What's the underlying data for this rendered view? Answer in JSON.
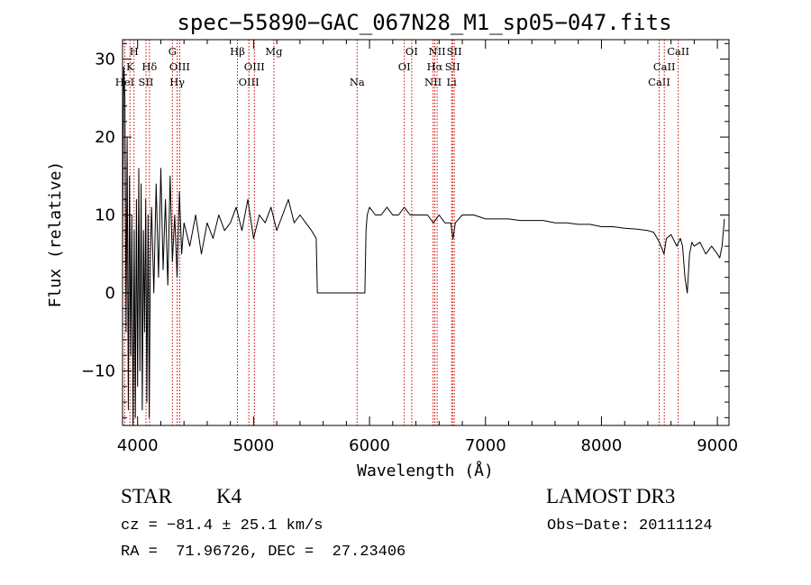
{
  "chart_data": {
    "type": "line",
    "title": "spec−55890−GAC_067N28_M1_sp05−047.fits",
    "xlabel": "Wavelength (Å)",
    "ylabel": "Flux (relative)",
    "xlim": [
      3870,
      9100
    ],
    "ylim": [
      -17,
      32.5
    ],
    "xticks": [
      {
        "v": 4000,
        "label": "4000"
      },
      {
        "v": 5000,
        "label": "5000"
      },
      {
        "v": 6000,
        "label": "6000"
      },
      {
        "v": 7000,
        "label": "7000"
      },
      {
        "v": 8000,
        "label": "8000"
      },
      {
        "v": 9000,
        "label": "9000"
      }
    ],
    "yticks": [
      {
        "v": -10,
        "label": "−10"
      },
      {
        "v": 0,
        "label": "0"
      },
      {
        "v": 10,
        "label": "10"
      },
      {
        "v": 20,
        "label": "20"
      },
      {
        "v": 30,
        "label": "30"
      }
    ],
    "series": [
      {
        "name": "flux",
        "x": [
          3870,
          3880,
          3890,
          3900,
          3910,
          3920,
          3930,
          3940,
          3950,
          3960,
          3970,
          3980,
          3990,
          4000,
          4010,
          4020,
          4030,
          4040,
          4050,
          4060,
          4070,
          4080,
          4090,
          4100,
          4110,
          4120,
          4140,
          4160,
          4180,
          4200,
          4220,
          4240,
          4260,
          4280,
          4300,
          4320,
          4340,
          4360,
          4380,
          4400,
          4450,
          4500,
          4550,
          4600,
          4650,
          4700,
          4750,
          4800,
          4850,
          4900,
          4950,
          5000,
          5050,
          5100,
          5150,
          5200,
          5250,
          5300,
          5350,
          5400,
          5450,
          5500,
          5540,
          5550,
          5560,
          5700,
          5800,
          5900,
          5960,
          5970,
          5980,
          6000,
          6050,
          6100,
          6150,
          6200,
          6250,
          6300,
          6350,
          6400,
          6450,
          6500,
          6550,
          6600,
          6650,
          6700,
          6720,
          6740,
          6800,
          6900,
          7000,
          7100,
          7200,
          7300,
          7400,
          7500,
          7600,
          7700,
          7800,
          7900,
          8000,
          8100,
          8200,
          8300,
          8400,
          8450,
          8500,
          8540,
          8560,
          8600,
          8650,
          8665,
          8680,
          8700,
          8720,
          8740,
          8760,
          8780,
          8800,
          8850,
          8900,
          8950,
          9000,
          9020,
          9040,
          9060
        ],
        "y": [
          5,
          29,
          25,
          -5,
          20,
          -15,
          15,
          -8,
          10,
          -17,
          8,
          -16,
          12,
          -12,
          16,
          -10,
          14,
          -15,
          8,
          -5,
          12,
          -14,
          10,
          -16,
          5,
          11,
          0,
          14,
          2,
          16,
          3,
          12,
          1,
          15,
          4,
          10,
          2,
          13,
          5,
          9,
          6,
          10,
          5,
          9,
          7,
          10,
          8,
          9,
          11,
          8,
          12,
          7,
          10,
          9,
          11,
          8,
          10,
          12,
          9,
          10,
          9,
          8,
          7,
          0,
          0,
          0,
          0,
          0,
          0,
          8,
          10,
          11,
          10,
          10,
          11,
          10,
          10,
          11,
          10,
          10,
          10,
          10,
          9,
          10,
          9,
          9,
          7,
          9,
          10,
          10,
          9.5,
          9.5,
          9.5,
          9.3,
          9.3,
          9.3,
          9.0,
          9.0,
          8.8,
          8.8,
          8.5,
          8.5,
          8.3,
          8.2,
          8.0,
          7.8,
          6.5,
          5,
          7,
          7.5,
          6,
          6.5,
          7,
          6,
          2,
          0,
          5,
          6.5,
          6,
          6.5,
          5,
          6,
          5,
          4.5,
          6,
          9.5
        ]
      }
    ],
    "lines": [
      {
        "wl": 3889,
        "label": "HeI",
        "row": 2
      },
      {
        "wl": 3934,
        "label": "K",
        "row": 1
      },
      {
        "wl": 3969,
        "label": "H",
        "row": 0
      },
      {
        "wl": 4072,
        "label": "SII",
        "row": 2
      },
      {
        "wl": 4102,
        "label": "Hδ",
        "row": 1
      },
      {
        "wl": 4300,
        "label": "G",
        "row": 0
      },
      {
        "wl": 4341,
        "label": "Hγ",
        "row": 2
      },
      {
        "wl": 4363,
        "label": "OIII",
        "row": 1
      },
      {
        "wl": 4861,
        "label": "Hβ",
        "row": 0
      },
      {
        "wl": 4959,
        "label": "OIII",
        "row": 2
      },
      {
        "wl": 5007,
        "label": "OIII",
        "row": 1
      },
      {
        "wl": 5175,
        "label": "Mg",
        "row": 0
      },
      {
        "wl": 5893,
        "label": "Na",
        "row": 2
      },
      {
        "wl": 6300,
        "label": "OI",
        "row": 1
      },
      {
        "wl": 6364,
        "label": "OI",
        "row": 0
      },
      {
        "wl": 6548,
        "label": "NII",
        "row": 2
      },
      {
        "wl": 6563,
        "label": "Hα",
        "row": 1
      },
      {
        "wl": 6583,
        "label": "NII",
        "row": 0
      },
      {
        "wl": 6708,
        "label": "Li",
        "row": 2
      },
      {
        "wl": 6716,
        "label": "SII",
        "row": 1
      },
      {
        "wl": 6731,
        "label": "SII",
        "row": 0
      },
      {
        "wl": 8498,
        "label": "CaII",
        "row": 2
      },
      {
        "wl": 8542,
        "label": "CaII",
        "row": 1
      },
      {
        "wl": 8662,
        "label": "CaII",
        "row": 0
      }
    ],
    "line_color": "#cc0000"
  },
  "info": {
    "class": "STAR",
    "subclass": "K4",
    "survey": "LAMOST DR3",
    "cz": "cz = −81.4 ± 25.1 km/s",
    "obs_date": "Obs−Date: 20111124",
    "radec": "RA =  71.96726, DEC =  27.23406"
  }
}
